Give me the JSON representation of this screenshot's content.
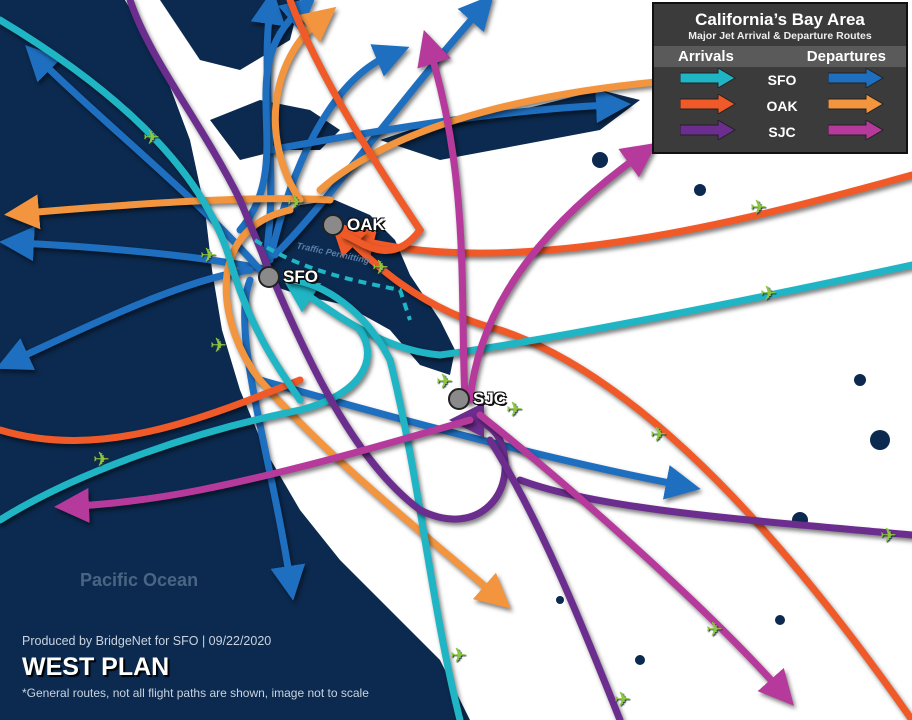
{
  "legend": {
    "title": "California’s Bay Area",
    "subtitle": "Major Jet Arrival & Departure Routes",
    "arrivals_header": "Arrivals",
    "departures_header": "Departures",
    "rows": [
      {
        "code": "SFO",
        "arrival_color": "#1fb5c4",
        "departure_color": "#1f6fc0"
      },
      {
        "code": "OAK",
        "arrival_color": "#f05a28",
        "departure_color": "#f3953f"
      },
      {
        "code": "SJC",
        "arrival_color": "#6b2d8e",
        "departure_color": "#b53a9b"
      }
    ]
  },
  "airports": [
    {
      "code": "OAK",
      "icon": "airport-icon"
    },
    {
      "code": "SFO",
      "icon": "airport-icon"
    },
    {
      "code": "SJC",
      "icon": "airport-icon"
    }
  ],
  "map": {
    "ocean_label": "Pacific Ocean",
    "traffic_note": "Traffic Permitting",
    "ocean_color": "#0c2a4f",
    "land_color": "#ffffff",
    "plane_icon_color": "#8cc63f"
  },
  "footer": {
    "credit": "Produced by BridgeNet for SFO  |  09/22/2020",
    "plan": "WEST PLAN",
    "note": "*General routes, not all flight paths are shown, image not to scale"
  }
}
